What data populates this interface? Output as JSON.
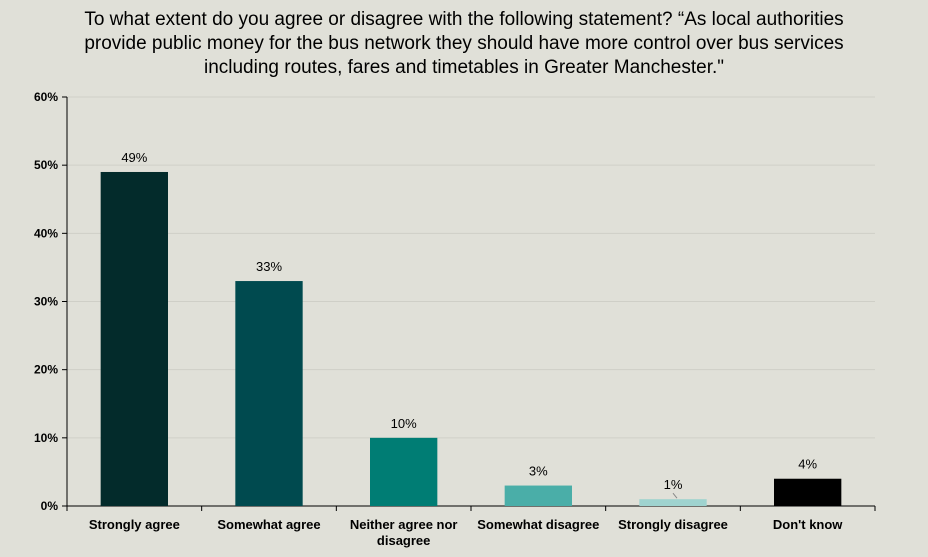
{
  "chart_data": {
    "type": "bar",
    "title": "To what extent do you agree or disagree with the following statement? “As local authorities provide public money for the bus network they should have more control over bus services including routes, fares and timetables in Greater Manchester.\"",
    "categories": [
      "Strongly agree",
      "Somewhat agree",
      "Neither agree nor disagree",
      "Somewhat disagree",
      "Strongly disagree",
      "Don't know"
    ],
    "values": [
      49,
      33,
      10,
      3,
      1,
      4
    ],
    "data_labels": [
      "49%",
      "33%",
      "10%",
      "3%",
      "1%",
      "4%"
    ],
    "colors": [
      "#032b2b",
      "#004a4f",
      "#007d74",
      "#4aaea8",
      "#9fd3cf",
      "#000000"
    ],
    "ylim": [
      0,
      60
    ],
    "yticks": [
      0,
      10,
      20,
      30,
      40,
      50,
      60
    ],
    "ytick_labels": [
      "0%",
      "10%",
      "20%",
      "30%",
      "40%",
      "50%",
      "60%"
    ],
    "grid": true,
    "legend": "none",
    "xlabel": "",
    "ylabel": ""
  }
}
